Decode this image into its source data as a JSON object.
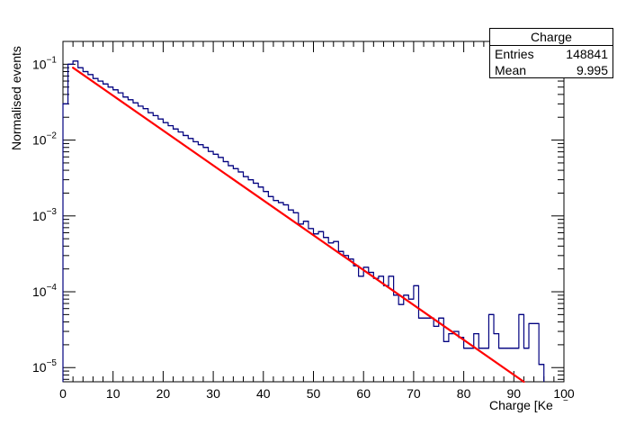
{
  "chart_data": {
    "type": "histogram",
    "title": "",
    "xlabel": "Charge [Ke",
    "ylabel": "Normalised events",
    "xlim": [
      0,
      100
    ],
    "ylim": [
      6.5e-06,
      0.2
    ],
    "yscale": "log",
    "grid": false,
    "x_ticks": [
      "0",
      "10",
      "20",
      "30",
      "40",
      "50",
      "60",
      "70",
      "80",
      "90",
      "100"
    ],
    "y_ticks": [
      {
        "base": "10",
        "exp": "−5",
        "value": 1e-05
      },
      {
        "base": "10",
        "exp": "−4",
        "value": 0.0001
      },
      {
        "base": "10",
        "exp": "−3",
        "value": 0.001
      },
      {
        "base": "10",
        "exp": "−2",
        "value": 0.01
      },
      {
        "base": "10",
        "exp": "−1",
        "value": 0.1
      }
    ],
    "bin_width": 1,
    "bin_low_edges": [
      0,
      1,
      2,
      3,
      4,
      5,
      6,
      7,
      8,
      9,
      10,
      11,
      12,
      13,
      14,
      15,
      16,
      17,
      18,
      19,
      20,
      21,
      22,
      23,
      24,
      25,
      26,
      27,
      28,
      29,
      30,
      31,
      32,
      33,
      34,
      35,
      36,
      37,
      38,
      39,
      40,
      41,
      42,
      43,
      44,
      45,
      46,
      47,
      48,
      49,
      50,
      51,
      52,
      53,
      54,
      55,
      56,
      57,
      58,
      59,
      60,
      61,
      62,
      63,
      64,
      65,
      66,
      67,
      68,
      69,
      70,
      71,
      72,
      73,
      74,
      75,
      76,
      77,
      78,
      79,
      80,
      81,
      82,
      83,
      84,
      85,
      86,
      87,
      88,
      89,
      90,
      91,
      92,
      93,
      94,
      95
    ],
    "histogram": {
      "color": "#00007f",
      "values": [
        0.03,
        0.1,
        0.11,
        0.09,
        0.08,
        0.073,
        0.065,
        0.06,
        0.055,
        0.05,
        0.046,
        0.042,
        0.037,
        0.034,
        0.031,
        0.028,
        0.026,
        0.023,
        0.021,
        0.019,
        0.017,
        0.0155,
        0.014,
        0.0128,
        0.0115,
        0.0105,
        0.0095,
        0.0087,
        0.008,
        0.0071,
        0.0065,
        0.0059,
        0.0052,
        0.0046,
        0.0042,
        0.0038,
        0.0033,
        0.003,
        0.0027,
        0.0024,
        0.0021,
        0.0018,
        0.0016,
        0.0015,
        0.0014,
        0.0012,
        0.0011,
        0.00078,
        0.00085,
        0.00068,
        0.00058,
        0.00062,
        0.00052,
        0.00044,
        0.00046,
        0.00034,
        0.0003,
        0.00027,
        0.00022,
        0.00016,
        0.00021,
        0.00018,
        0.00015,
        0.00016,
        0.00012,
        0.00016,
        9e-05,
        6.8e-05,
        9e-05,
        8e-05,
        0.00012,
        4.5e-05,
        4.5e-05,
        4.5e-05,
        3.5e-05,
        4.5e-05,
        2.2e-05,
        2.8e-05,
        3e-05,
        2.5e-05,
        1.8e-05,
        1.8e-05,
        2.8e-05,
        1.8e-05,
        1.8e-05,
        5e-05,
        2.8e-05,
        1.8e-05,
        1.8e-05,
        1.8e-05,
        1.8e-05,
        5e-05,
        1.8e-05,
        3.8e-05,
        3.8e-05,
        1.1e-05
      ]
    },
    "fit": {
      "color": "#ff0000",
      "x_range": [
        2,
        92
      ],
      "y_at_x_range": [
        0.09,
        6.5e-06
      ]
    },
    "stats": {
      "title": "Charge",
      "rows": [
        {
          "label": "Entries",
          "value": "148841"
        },
        {
          "label": "Mean",
          "value": "9.995"
        }
      ]
    }
  }
}
